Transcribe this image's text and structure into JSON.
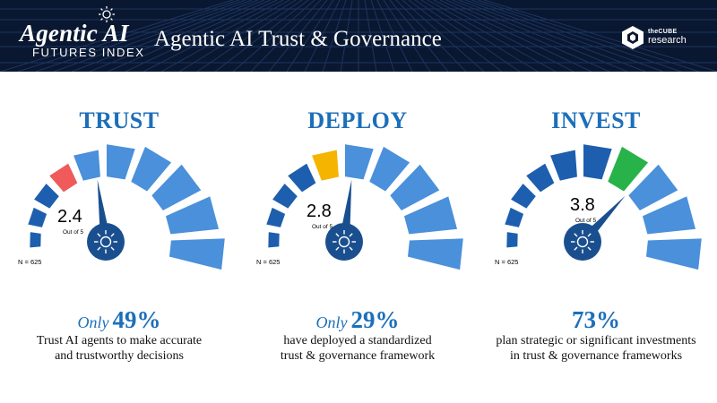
{
  "header": {
    "brand_name": "Agentic AI",
    "brand_sub": "FUTURES INDEX",
    "title": "Agentic AI Trust & Governance",
    "org_small": "theCUBE",
    "org_large": "research"
  },
  "colors": {
    "header_bg": "#0a1730",
    "accent_blue": "#1c6fb9",
    "segment_dark": "#1d5fae",
    "segment_light": "#4a90db",
    "trust_highlight": "#f05a5a",
    "deploy_highlight": "#f5b400",
    "invest_highlight": "#27b24a"
  },
  "panels": [
    {
      "title": "TRUST",
      "score": "2.4",
      "score_value": 2.4,
      "out_of": "Out of 5",
      "sample": "N = 625",
      "highlight_segment": 4,
      "highlight_color": "#f05a5a",
      "stat_prefix": "Only",
      "stat_value": "49%",
      "desc_line1": "Trust AI agents to make accurate",
      "desc_line2": "and trustworthy decisions"
    },
    {
      "title": "DEPLOY",
      "score": "2.8",
      "score_value": 2.8,
      "out_of": "Out of 5",
      "sample": "N = 625",
      "highlight_segment": 5,
      "highlight_color": "#f5b400",
      "stat_prefix": "Only",
      "stat_value": "29%",
      "desc_line1": "have deployed a standardized",
      "desc_line2": "trust & governance framework"
    },
    {
      "title": "INVEST",
      "score": "3.8",
      "score_value": 3.8,
      "out_of": "Out of 5",
      "sample": "N = 625",
      "highlight_segment": 7,
      "highlight_color": "#27b24a",
      "stat_prefix": "",
      "stat_value": "73%",
      "desc_line1": "plan strategic or significant investments",
      "desc_line2": "in trust & governance frameworks"
    }
  ]
}
